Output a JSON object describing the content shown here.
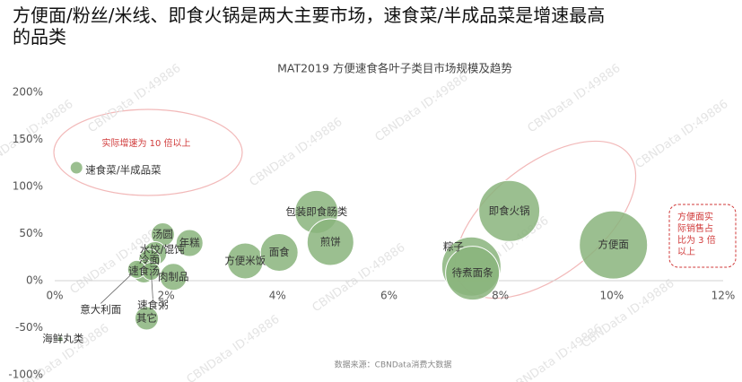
{
  "header": "方便面/粉丝/米线、即食火锅是两大主要市场，速食菜/半成品菜是增速最高的品类",
  "chart_data": {
    "type": "bubble",
    "title": "MAT2019 方便速食各叶子类目市场规模及趋势",
    "color": "#8ab47c",
    "xlim": [
      0,
      12
    ],
    "xticks": [
      {
        "value": 0,
        "label": "0%"
      },
      {
        "value": 2,
        "label": "2%"
      },
      {
        "value": 4,
        "label": "4%"
      },
      {
        "value": 6,
        "label": "6%"
      },
      {
        "value": 8,
        "label": "8%"
      },
      {
        "value": 10,
        "label": "10%"
      },
      {
        "value": 12,
        "label": "12%"
      }
    ],
    "ylim": [
      -100,
      200
    ],
    "yticks": [
      {
        "value": -100,
        "label": "-100%"
      },
      {
        "value": -50,
        "label": "-50%"
      },
      {
        "value": 0,
        "label": "0%"
      },
      {
        "value": 50,
        "label": "50%"
      },
      {
        "value": 100,
        "label": "100%"
      },
      {
        "value": 150,
        "label": "150%"
      },
      {
        "value": 200,
        "label": "200%"
      }
    ],
    "grid": false,
    "points": [
      {
        "label": "速食菜/半成品菜",
        "x": 0.39,
        "y": 120,
        "size": 7
      },
      {
        "label": "汤圆",
        "x": 1.94,
        "y": 49,
        "size": 13
      },
      {
        "label": "年糕",
        "x": 2.42,
        "y": 40,
        "size": 15
      },
      {
        "label": "水饺/馄饨",
        "x": 1.8,
        "y": 29,
        "size": 13
      },
      {
        "label": "冷面",
        "x": 1.7,
        "y": 22,
        "size": 12
      },
      {
        "label": "速食汤",
        "x": 1.6,
        "y": 10,
        "size": 13
      },
      {
        "label": "肉制品",
        "x": 2.13,
        "y": 4,
        "size": 15
      },
      {
        "label": "意大利面",
        "x": 1.47,
        "y": 12,
        "size": 10
      },
      {
        "label": "速食粥",
        "x": 1.73,
        "y": 10,
        "size": 10
      },
      {
        "label": "其它",
        "x": 1.65,
        "y": -40,
        "size": 13
      },
      {
        "label": "海鲜丸类",
        "x": 0.1,
        "y": -62,
        "size": 3
      },
      {
        "label": "方便米饭",
        "x": 3.42,
        "y": 21,
        "size": 20
      },
      {
        "label": "面食",
        "x": 4.03,
        "y": 30,
        "size": 21
      },
      {
        "label": "包装即食肠类",
        "x": 4.7,
        "y": 73,
        "size": 24
      },
      {
        "label": "煎饼",
        "x": 4.95,
        "y": 41,
        "size": 26
      },
      {
        "label": "粽子",
        "x": 7.48,
        "y": 15,
        "size": 33
      },
      {
        "label": "待煮面条",
        "x": 7.5,
        "y": 8,
        "size": 30
      },
      {
        "label": "即食火锅",
        "x": 8.16,
        "y": 74,
        "size": 34
      },
      {
        "label": "方便面",
        "x": 10.03,
        "y": 38,
        "size": 38
      }
    ],
    "annotations": [
      [
        "实际增速为 10 倍以上"
      ],
      [
        "方便面实",
        "际销售占",
        "比为 3 倍",
        "以上"
      ]
    ],
    "source": "数据来源：CBNData消费大数据"
  },
  "watermark": "CBNData ID:49886"
}
